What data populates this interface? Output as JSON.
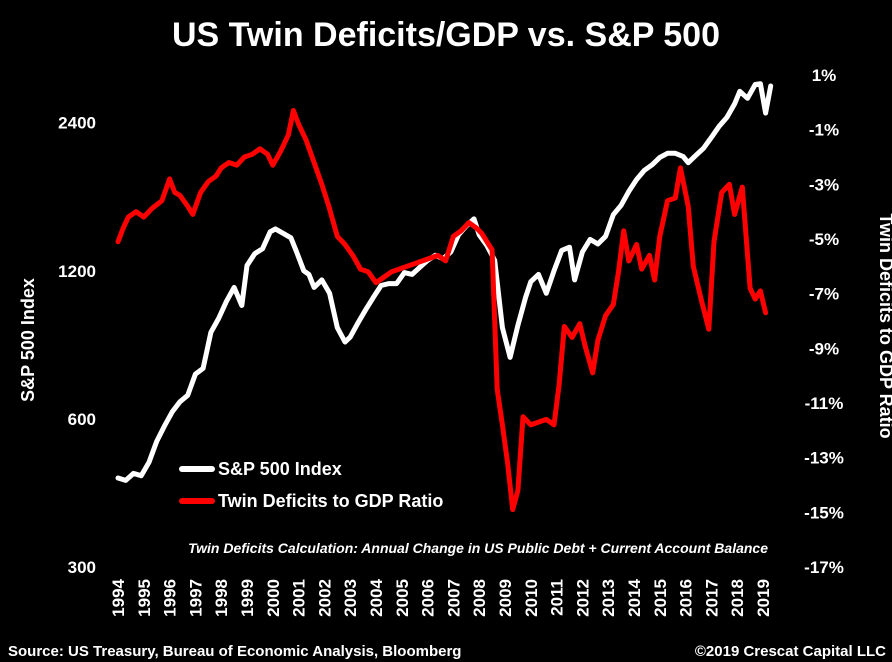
{
  "chart_data": {
    "type": "line",
    "title": "US Twin Deficits/GDP vs. S&P 500",
    "left_axis": {
      "label": "S&P 500 Index",
      "scale": "log",
      "range": [
        300,
        3000
      ],
      "ticks": [
        300,
        600,
        1200,
        2400
      ]
    },
    "right_axis": {
      "label": "Twin Deficits to GDP Ratio",
      "range": [
        -17,
        1
      ],
      "ticks": [
        "1%",
        "-1%",
        "-3%",
        "-5%",
        "-7%",
        "-9%",
        "-11%",
        "-13%",
        "-15%",
        "-17%"
      ],
      "tick_values": [
        1,
        -1,
        -3,
        -5,
        -7,
        -9,
        -11,
        -13,
        -15,
        -17
      ]
    },
    "x_axis": {
      "range": [
        1994,
        2019.35
      ],
      "ticks": [
        "1994",
        "1995",
        "1996",
        "1997",
        "1998",
        "1999",
        "2000",
        "2001",
        "2002",
        "2003",
        "2004",
        "2005",
        "2006",
        "2007",
        "2008",
        "2009",
        "2010",
        "2011",
        "2012",
        "2013",
        "2014",
        "2015",
        "2016",
        "2017",
        "2018",
        "2019"
      ]
    },
    "grid": false,
    "legend_position": "bottom-left",
    "series": [
      {
        "name": "S&P 500 Index",
        "axis": "left",
        "color": "#ffffff",
        "x": [
          1994.0,
          1994.3,
          1994.6,
          1994.9,
          1995.2,
          1995.5,
          1995.8,
          1996.1,
          1996.4,
          1996.7,
          1997.0,
          1997.3,
          1997.6,
          1997.9,
          1998.2,
          1998.5,
          1998.8,
          1999.0,
          1999.3,
          1999.6,
          1999.9,
          2000.1,
          2000.4,
          2000.7,
          2000.9,
          2001.2,
          2001.4,
          2001.6,
          2001.9,
          2002.2,
          2002.5,
          2002.8,
          2003.0,
          2003.3,
          2003.6,
          2003.9,
          2004.2,
          2004.5,
          2004.8,
          2005.1,
          2005.4,
          2005.7,
          2006.0,
          2006.3,
          2006.6,
          2006.9,
          2007.2,
          2007.5,
          2007.8,
          2008.0,
          2008.3,
          2008.6,
          2008.9,
          2009.2,
          2009.5,
          2009.8,
          2010.0,
          2010.3,
          2010.6,
          2010.9,
          2011.2,
          2011.5,
          2011.7,
          2012.0,
          2012.3,
          2012.6,
          2012.9,
          2013.2,
          2013.5,
          2013.8,
          2014.1,
          2014.4,
          2014.7,
          2015.0,
          2015.3,
          2015.6,
          2015.9,
          2016.1,
          2016.4,
          2016.7,
          2017.0,
          2017.3,
          2017.6,
          2017.9,
          2018.1,
          2018.4,
          2018.7,
          2018.9,
          2019.1,
          2019.3
        ],
        "values": [
          455,
          450,
          465,
          460,
          490,
          540,
          580,
          620,
          650,
          670,
          740,
          760,
          900,
          960,
          1040,
          1110,
          1020,
          1230,
          1300,
          1330,
          1440,
          1460,
          1430,
          1400,
          1320,
          1200,
          1180,
          1110,
          1150,
          1080,
          920,
          860,
          880,
          940,
          1000,
          1060,
          1120,
          1130,
          1130,
          1190,
          1180,
          1220,
          1260,
          1290,
          1270,
          1310,
          1420,
          1480,
          1530,
          1420,
          1350,
          1260,
          920,
          800,
          930,
          1060,
          1140,
          1180,
          1080,
          1200,
          1320,
          1340,
          1150,
          1310,
          1390,
          1360,
          1410,
          1560,
          1630,
          1740,
          1840,
          1920,
          1970,
          2040,
          2080,
          2080,
          2050,
          1990,
          2060,
          2130,
          2240,
          2360,
          2460,
          2620,
          2780,
          2690,
          2870,
          2880,
          2510,
          2850
        ]
      },
      {
        "name": "Twin Deficits to GDP Ratio",
        "axis": "right",
        "color": "#ff0000",
        "x": [
          1994.0,
          1994.2,
          1994.4,
          1994.7,
          1995.0,
          1995.3,
          1995.7,
          1996.0,
          1996.2,
          1996.4,
          1996.7,
          1996.9,
          1997.2,
          1997.5,
          1997.8,
          1998.0,
          1998.3,
          1998.6,
          1998.9,
          1999.2,
          1999.5,
          1999.8,
          2000.0,
          2000.3,
          2000.6,
          2000.8,
          2001.0,
          2001.3,
          2001.6,
          2001.9,
          2002.2,
          2002.5,
          2002.8,
          2003.1,
          2003.4,
          2003.7,
          2004.0,
          2004.3,
          2004.6,
          2004.9,
          2005.2,
          2005.5,
          2005.8,
          2006.1,
          2006.4,
          2006.7,
          2007.0,
          2007.3,
          2007.6,
          2007.9,
          2008.1,
          2008.3,
          2008.5,
          2008.7,
          2008.9,
          2009.1,
          2009.3,
          2009.5,
          2009.7,
          2010.0,
          2010.3,
          2010.6,
          2010.9,
          2011.1,
          2011.3,
          2011.6,
          2011.9,
          2012.1,
          2012.4,
          2012.6,
          2012.9,
          2013.2,
          2013.4,
          2013.6,
          2013.8,
          2014.1,
          2014.3,
          2014.6,
          2014.8,
          2015.0,
          2015.3,
          2015.6,
          2015.8,
          2016.1,
          2016.3,
          2016.6,
          2016.9,
          2017.1,
          2017.4,
          2017.7,
          2017.9,
          2018.2,
          2018.5,
          2018.7,
          2018.9,
          2019.1
        ],
        "values": [
          -5.1,
          -4.6,
          -4.2,
          -4.0,
          -4.2,
          -3.9,
          -3.6,
          -2.8,
          -3.3,
          -3.4,
          -3.8,
          -4.1,
          -3.3,
          -2.9,
          -2.7,
          -2.4,
          -2.2,
          -2.3,
          -2.0,
          -1.9,
          -1.7,
          -1.9,
          -2.3,
          -1.8,
          -1.2,
          -0.3,
          -0.8,
          -1.4,
          -2.2,
          -3.0,
          -3.9,
          -4.9,
          -5.2,
          -5.6,
          -6.1,
          -6.2,
          -6.6,
          -6.4,
          -6.2,
          -6.1,
          -6.0,
          -5.9,
          -5.8,
          -5.7,
          -5.6,
          -5.8,
          -4.9,
          -4.7,
          -4.4,
          -4.6,
          -4.8,
          -5.1,
          -5.4,
          -10.5,
          -11.8,
          -13.2,
          -14.9,
          -14.2,
          -11.5,
          -11.8,
          -11.7,
          -11.6,
          -11.8,
          -10.3,
          -8.2,
          -8.6,
          -8.1,
          -8.9,
          -9.9,
          -8.7,
          -7.8,
          -7.4,
          -6.2,
          -4.7,
          -5.8,
          -5.2,
          -6.1,
          -5.6,
          -6.5,
          -4.9,
          -3.6,
          -3.5,
          -2.4,
          -3.8,
          -6.0,
          -7.2,
          -8.3,
          -5.1,
          -3.3,
          -3.0,
          -4.1,
          -3.1,
          -6.8,
          -7.2,
          -6.9,
          -7.7
        ]
      }
    ],
    "annotation": "Twin Deficits Calculation: Annual Change in US Public Debt + Current Account Balance"
  },
  "footer": {
    "source": "Source: US Treasury, Bureau of Economic Analysis, Bloomberg",
    "copyright": "©2019 Crescat Capital LLC"
  }
}
